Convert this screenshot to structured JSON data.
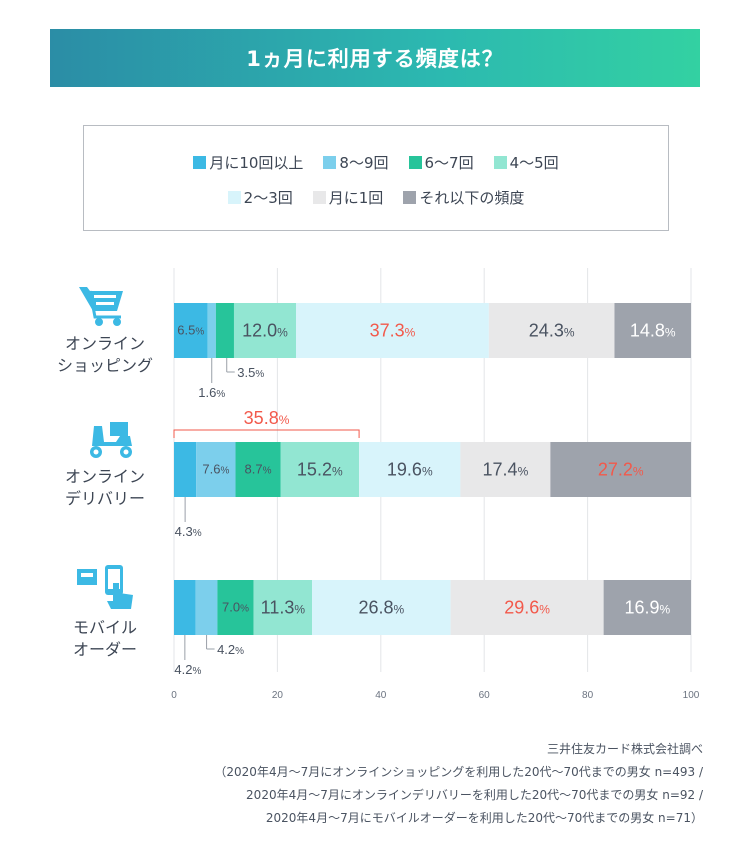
{
  "title": "1ヵ月に利用する頻度は？",
  "colors": {
    "c1": "#3cb9e4",
    "c2": "#7ccfec",
    "c3": "#27c49a",
    "c4": "#92e6d2",
    "c5": "#d8f4fb",
    "c6": "#e8e8e9",
    "c7": "#9ea3ac",
    "accent": "#f2594b",
    "dark_text": "#4a5361",
    "icon": "#3cb9e4"
  },
  "legend": [
    {
      "label": "月に10回以上",
      "color": "#3cb9e4"
    },
    {
      "label": "8〜9回",
      "color": "#7ccfec"
    },
    {
      "label": "6〜7回",
      "color": "#27c49a"
    },
    {
      "label": "4〜5回",
      "color": "#92e6d2"
    },
    {
      "label": "2〜3回",
      "color": "#d8f4fb"
    },
    {
      "label": "月に1回",
      "color": "#e8e8e9"
    },
    {
      "label": "それ以下の頻度",
      "color": "#9ea3ac"
    }
  ],
  "categories": [
    {
      "line1": "オンライン",
      "line2": "ショッピング",
      "icon": "shopping-cart-icon"
    },
    {
      "line1": "オンライン",
      "line2": "デリバリー",
      "icon": "delivery-scooter-icon"
    },
    {
      "line1": "モバイル",
      "line2": "オーダー",
      "icon": "mobile-order-icon"
    }
  ],
  "chart_data": {
    "type": "bar",
    "orientation": "horizontal",
    "stacked": true,
    "percent_unit": "%",
    "categories": [
      "オンラインショッピング",
      "オンラインデリバリー",
      "モバイルオーダー"
    ],
    "series": [
      {
        "name": "月に10回以上",
        "values": [
          6.5,
          4.3,
          4.2
        ]
      },
      {
        "name": "8〜9回",
        "values": [
          1.6,
          7.6,
          4.2
        ]
      },
      {
        "name": "6〜7回",
        "values": [
          3.5,
          8.7,
          7.0
        ]
      },
      {
        "name": "4〜5回",
        "values": [
          12.0,
          15.2,
          11.3
        ]
      },
      {
        "name": "2〜3回",
        "values": [
          37.3,
          19.6,
          26.8
        ]
      },
      {
        "name": "月に1回",
        "values": [
          24.3,
          17.4,
          29.6
        ]
      },
      {
        "name": "それ以下の頻度",
        "values": [
          14.8,
          27.2,
          16.9
        ]
      }
    ],
    "highlighted_values": [
      {
        "category": 0,
        "series": 4
      },
      {
        "category": 1,
        "series": 6
      },
      {
        "category": 2,
        "series": 5
      }
    ],
    "callout_labels": [
      {
        "category": 0,
        "series": 1,
        "text": "1.6"
      },
      {
        "category": 0,
        "series": 2,
        "text": "3.5"
      },
      {
        "category": 1,
        "series": 0,
        "text": "4.3"
      },
      {
        "category": 2,
        "series": 0,
        "text": "4.2"
      },
      {
        "category": 2,
        "series": 1,
        "text": "4.2"
      }
    ],
    "bracket": {
      "category": 1,
      "from_series": 0,
      "to_series": 3,
      "text": "35.8"
    },
    "xlim": [
      0,
      100
    ],
    "xticks": [
      0,
      20,
      40,
      60,
      80,
      100
    ],
    "grid": true
  },
  "source": {
    "org": "三井住友カード株式会社調べ",
    "note1": "（2020年4月〜7月にオンラインショッピングを利用した20代〜70代までの男女 n=493 /",
    "note2": "2020年4月〜7月にオンラインデリバリーを利用した20代〜70代までの男女 n=92 /",
    "note3": "2020年4月〜7月にモバイルオーダーを利用した20代〜70代までの男女 n=71）"
  }
}
